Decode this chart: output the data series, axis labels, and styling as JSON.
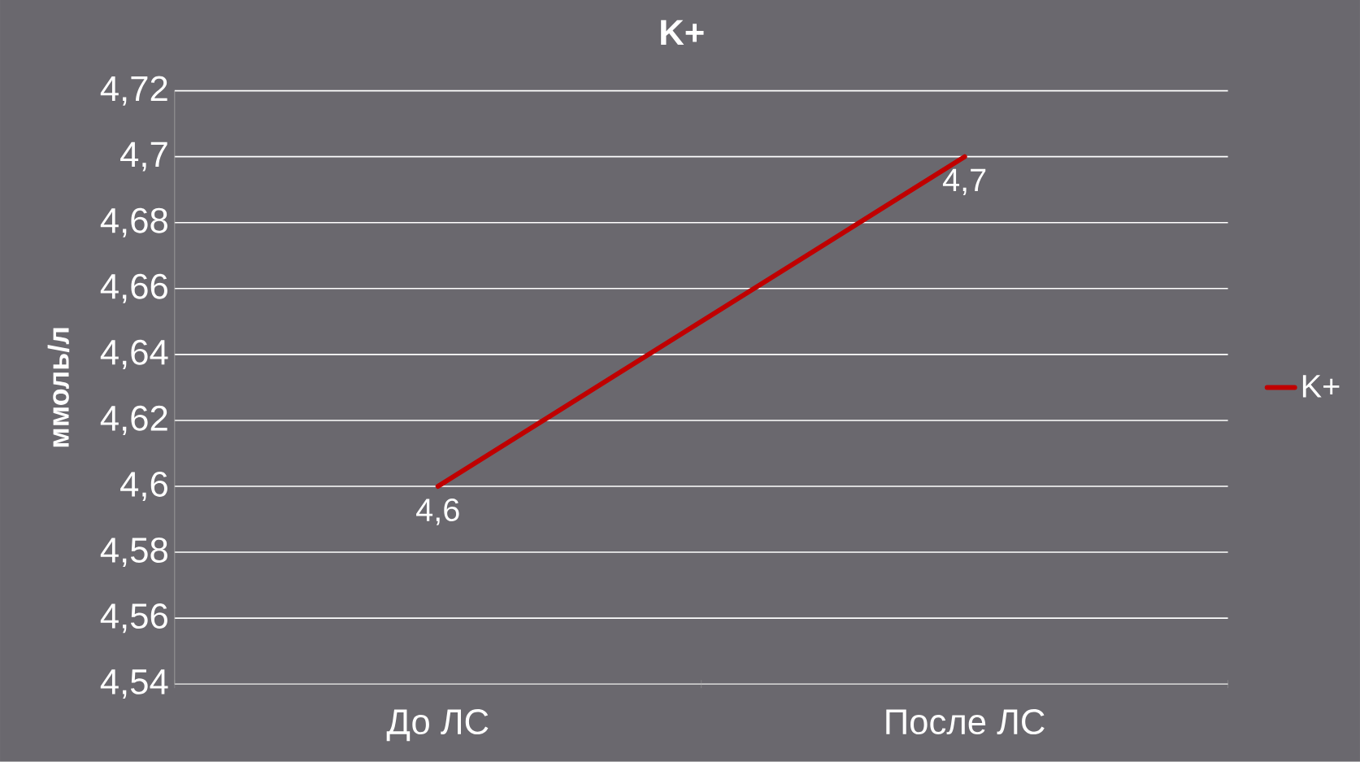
{
  "chart_data": {
    "type": "line",
    "title": "K+",
    "ylabel": "ммоль/л",
    "categories": [
      "До ЛС",
      "После ЛС"
    ],
    "series": [
      {
        "name": "K+",
        "color": "#c00000",
        "values": [
          4.6,
          4.7
        ],
        "value_labels": [
          "4,6",
          "4,7"
        ]
      }
    ],
    "ylim": [
      4.54,
      4.72
    ],
    "yticks": [
      {
        "value": 4.54,
        "label": "4,54"
      },
      {
        "value": 4.56,
        "label": "4,56"
      },
      {
        "value": 4.58,
        "label": "4,58"
      },
      {
        "value": 4.6,
        "label": "4,6"
      },
      {
        "value": 4.62,
        "label": "4,62"
      },
      {
        "value": 4.64,
        "label": "4,64"
      },
      {
        "value": 4.66,
        "label": "4,66"
      },
      {
        "value": 4.68,
        "label": "4,68"
      },
      {
        "value": 4.7,
        "label": "4,7"
      },
      {
        "value": 4.72,
        "label": "4,72"
      }
    ],
    "grid": "y",
    "legend": "right",
    "marker": "none",
    "line_style": "solid"
  }
}
